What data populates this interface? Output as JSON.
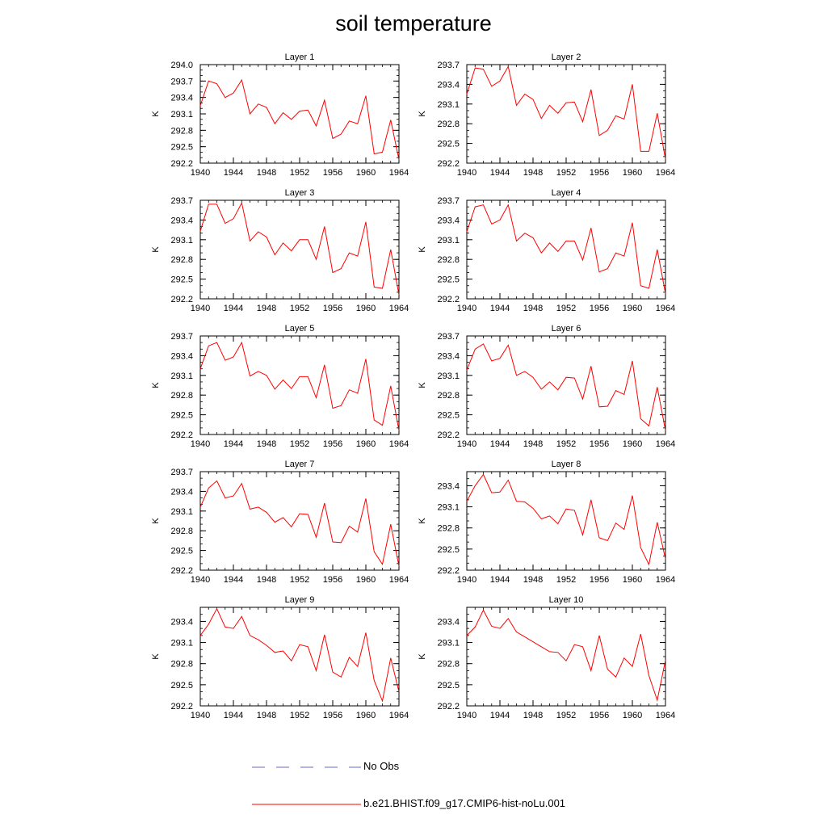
{
  "figure_title": "soil temperature",
  "legend": {
    "items": [
      {
        "label": "No Obs",
        "color": "#6a6ac8",
        "style": "dashed"
      },
      {
        "label": "b.e21.BHIST.f09_g17.CMIP6-hist-noLu.001",
        "color": "#ff0000",
        "style": "solid"
      }
    ]
  },
  "chart_data": [
    {
      "type": "line",
      "title": "Layer 1",
      "ylabel": "K",
      "xlim": [
        1940,
        1964
      ],
      "ylim": [
        292.2,
        294.0
      ],
      "xticks": [
        "1940",
        "1944",
        "1948",
        "1952",
        "1956",
        "1960",
        "1964"
      ],
      "yticks": [
        "292.2",
        "292.5",
        "292.8",
        "293.1",
        "293.4",
        "293.7",
        "294.0"
      ],
      "x": [
        1940,
        1941,
        1942,
        1943,
        1944,
        1945,
        1946,
        1947,
        1948,
        1949,
        1950,
        1951,
        1952,
        1953,
        1954,
        1955,
        1956,
        1957,
        1958,
        1959,
        1960,
        1961,
        1962,
        1963,
        1964
      ],
      "series": [
        {
          "color": "#ff0000",
          "values": [
            293.25,
            293.7,
            293.65,
            293.4,
            293.48,
            293.72,
            293.1,
            293.28,
            293.22,
            292.92,
            293.12,
            293.0,
            293.15,
            293.17,
            292.88,
            293.35,
            292.65,
            292.73,
            292.97,
            292.92,
            293.43,
            292.37,
            292.4,
            292.99,
            292.26
          ]
        }
      ]
    },
    {
      "type": "line",
      "title": "Layer 2",
      "ylabel": "K",
      "xlim": [
        1940,
        1964
      ],
      "ylim": [
        292.2,
        293.7
      ],
      "xticks": [
        "1940",
        "1944",
        "1948",
        "1952",
        "1956",
        "1960",
        "1964"
      ],
      "yticks": [
        "292.2",
        "292.5",
        "292.8",
        "293.1",
        "293.4",
        "293.7"
      ],
      "x": [
        1940,
        1941,
        1942,
        1943,
        1944,
        1945,
        1946,
        1947,
        1948,
        1949,
        1950,
        1951,
        1952,
        1953,
        1954,
        1955,
        1956,
        1957,
        1958,
        1959,
        1960,
        1961,
        1962,
        1963,
        1964
      ],
      "series": [
        {
          "color": "#ff0000",
          "values": [
            293.25,
            293.65,
            293.63,
            293.37,
            293.45,
            293.67,
            293.08,
            293.25,
            293.17,
            292.88,
            293.08,
            292.96,
            293.12,
            293.13,
            292.83,
            293.32,
            292.62,
            292.7,
            292.92,
            292.87,
            293.4,
            292.38,
            292.38,
            292.96,
            292.26
          ]
        }
      ]
    },
    {
      "type": "line",
      "title": "Layer 3",
      "ylabel": "K",
      "xlim": [
        1940,
        1964
      ],
      "ylim": [
        292.2,
        293.7
      ],
      "xticks": [
        "1940",
        "1944",
        "1948",
        "1952",
        "1956",
        "1960",
        "1964"
      ],
      "yticks": [
        "292.2",
        "292.5",
        "292.8",
        "293.1",
        "293.4",
        "293.7"
      ],
      "x": [
        1940,
        1941,
        1942,
        1943,
        1944,
        1945,
        1946,
        1947,
        1948,
        1949,
        1950,
        1951,
        1952,
        1953,
        1954,
        1955,
        1956,
        1957,
        1958,
        1959,
        1960,
        1961,
        1962,
        1963,
        1964
      ],
      "series": [
        {
          "color": "#ff0000",
          "values": [
            293.23,
            293.64,
            293.64,
            293.35,
            293.42,
            293.66,
            293.08,
            293.22,
            293.14,
            292.87,
            293.05,
            292.93,
            293.1,
            293.1,
            292.8,
            293.3,
            292.6,
            292.66,
            292.9,
            292.85,
            293.37,
            292.38,
            292.36,
            292.95,
            292.26
          ]
        }
      ]
    },
    {
      "type": "line",
      "title": "Layer 4",
      "ylabel": "K",
      "xlim": [
        1940,
        1964
      ],
      "ylim": [
        292.2,
        293.7
      ],
      "xticks": [
        "1940",
        "1944",
        "1948",
        "1952",
        "1956",
        "1960",
        "1964"
      ],
      "yticks": [
        "292.2",
        "292.5",
        "292.8",
        "293.1",
        "293.4",
        "293.7"
      ],
      "x": [
        1940,
        1941,
        1942,
        1943,
        1944,
        1945,
        1946,
        1947,
        1948,
        1949,
        1950,
        1951,
        1952,
        1953,
        1954,
        1955,
        1956,
        1957,
        1958,
        1959,
        1960,
        1961,
        1962,
        1963,
        1964
      ],
      "series": [
        {
          "color": "#ff0000",
          "values": [
            293.22,
            293.6,
            293.63,
            293.34,
            293.4,
            293.63,
            293.08,
            293.2,
            293.13,
            292.9,
            293.05,
            292.92,
            293.08,
            293.08,
            292.79,
            293.28,
            292.61,
            292.66,
            292.9,
            292.85,
            293.36,
            292.4,
            292.36,
            292.95,
            292.28
          ]
        }
      ]
    },
    {
      "type": "line",
      "title": "Layer 5",
      "ylabel": "K",
      "xlim": [
        1940,
        1964
      ],
      "ylim": [
        292.2,
        293.7
      ],
      "xticks": [
        "1940",
        "1944",
        "1948",
        "1952",
        "1956",
        "1960",
        "1964"
      ],
      "yticks": [
        "292.2",
        "292.5",
        "292.8",
        "293.1",
        "293.4",
        "293.7"
      ],
      "x": [
        1940,
        1941,
        1942,
        1943,
        1944,
        1945,
        1946,
        1947,
        1948,
        1949,
        1950,
        1951,
        1952,
        1953,
        1954,
        1955,
        1956,
        1957,
        1958,
        1959,
        1960,
        1961,
        1962,
        1963,
        1964
      ],
      "series": [
        {
          "color": "#ff0000",
          "values": [
            293.2,
            293.55,
            293.6,
            293.33,
            293.38,
            293.6,
            293.09,
            293.16,
            293.1,
            292.89,
            293.03,
            292.9,
            293.08,
            293.08,
            292.76,
            293.26,
            292.6,
            292.64,
            292.88,
            292.83,
            293.35,
            292.42,
            292.34,
            292.94,
            292.26
          ]
        }
      ]
    },
    {
      "type": "line",
      "title": "Layer 6",
      "ylabel": "K",
      "xlim": [
        1940,
        1964
      ],
      "ylim": [
        292.2,
        293.7
      ],
      "xticks": [
        "1940",
        "1944",
        "1948",
        "1952",
        "1956",
        "1960",
        "1964"
      ],
      "yticks": [
        "292.2",
        "292.5",
        "292.8",
        "293.1",
        "293.4",
        "293.7"
      ],
      "x": [
        1940,
        1941,
        1942,
        1943,
        1944,
        1945,
        1946,
        1947,
        1948,
        1949,
        1950,
        1951,
        1952,
        1953,
        1954,
        1955,
        1956,
        1957,
        1958,
        1959,
        1960,
        1961,
        1962,
        1963,
        1964
      ],
      "series": [
        {
          "color": "#ff0000",
          "values": [
            293.18,
            293.5,
            293.58,
            293.32,
            293.36,
            293.56,
            293.1,
            293.16,
            293.07,
            292.89,
            293.0,
            292.88,
            293.07,
            293.06,
            292.74,
            293.24,
            292.62,
            292.63,
            292.87,
            292.81,
            293.32,
            292.44,
            292.33,
            292.92,
            292.26
          ]
        }
      ]
    },
    {
      "type": "line",
      "title": "Layer 7",
      "ylabel": "K",
      "xlim": [
        1940,
        1964
      ],
      "ylim": [
        292.2,
        293.7
      ],
      "xticks": [
        "1940",
        "1944",
        "1948",
        "1952",
        "1956",
        "1960",
        "1964"
      ],
      "yticks": [
        "292.2",
        "292.5",
        "292.8",
        "293.1",
        "293.4",
        "293.7"
      ],
      "x": [
        1940,
        1941,
        1942,
        1943,
        1944,
        1945,
        1946,
        1947,
        1948,
        1949,
        1950,
        1951,
        1952,
        1953,
        1954,
        1955,
        1956,
        1957,
        1958,
        1959,
        1960,
        1961,
        1962,
        1963,
        1964
      ],
      "series": [
        {
          "color": "#ff0000",
          "values": [
            293.16,
            293.45,
            293.56,
            293.3,
            293.33,
            293.52,
            293.13,
            293.16,
            293.08,
            292.93,
            293.0,
            292.86,
            293.06,
            293.05,
            292.7,
            293.22,
            292.63,
            292.62,
            292.87,
            292.78,
            293.29,
            292.48,
            292.29,
            292.9,
            292.26
          ]
        }
      ]
    },
    {
      "type": "line",
      "title": "Layer 8",
      "ylabel": "K",
      "xlim": [
        1940,
        1964
      ],
      "ylim": [
        292.2,
        293.6
      ],
      "xticks": [
        "1940",
        "1944",
        "1948",
        "1952",
        "1956",
        "1960",
        "1964"
      ],
      "yticks": [
        "292.2",
        "292.5",
        "292.8",
        "293.1",
        "293.4"
      ],
      "x": [
        1940,
        1941,
        1942,
        1943,
        1944,
        1945,
        1946,
        1947,
        1948,
        1949,
        1950,
        1951,
        1952,
        1953,
        1954,
        1955,
        1956,
        1957,
        1958,
        1959,
        1960,
        1961,
        1962,
        1963,
        1964
      ],
      "series": [
        {
          "color": "#ff0000",
          "values": [
            293.18,
            293.4,
            293.56,
            293.3,
            293.31,
            293.48,
            293.18,
            293.17,
            293.08,
            292.93,
            292.97,
            292.86,
            293.07,
            293.05,
            292.7,
            293.2,
            292.66,
            292.62,
            292.87,
            292.78,
            293.26,
            292.52,
            292.28,
            292.88,
            292.36
          ]
        }
      ]
    },
    {
      "type": "line",
      "title": "Layer 9",
      "ylabel": "K",
      "xlim": [
        1940,
        1964
      ],
      "ylim": [
        292.2,
        293.6
      ],
      "xticks": [
        "1940",
        "1944",
        "1948",
        "1952",
        "1956",
        "1960",
        "1964"
      ],
      "yticks": [
        "292.2",
        "292.5",
        "292.8",
        "293.1",
        "293.4"
      ],
      "x": [
        1940,
        1941,
        1942,
        1943,
        1944,
        1945,
        1946,
        1947,
        1948,
        1949,
        1950,
        1951,
        1952,
        1953,
        1954,
        1955,
        1956,
        1957,
        1958,
        1959,
        1960,
        1961,
        1962,
        1963,
        1964
      ],
      "series": [
        {
          "color": "#ff0000",
          "values": [
            293.2,
            293.36,
            293.58,
            293.32,
            293.3,
            293.47,
            293.2,
            293.14,
            293.06,
            292.96,
            292.98,
            292.84,
            293.07,
            293.04,
            292.7,
            293.21,
            292.68,
            292.61,
            292.89,
            292.76,
            293.24,
            292.56,
            292.27,
            292.88,
            292.4
          ]
        }
      ]
    },
    {
      "type": "line",
      "title": "Layer 10",
      "ylabel": "K",
      "xlim": [
        1940,
        1964
      ],
      "ylim": [
        292.2,
        293.6
      ],
      "xticks": [
        "1940",
        "1944",
        "1948",
        "1952",
        "1956",
        "1960",
        "1964"
      ],
      "yticks": [
        "292.2",
        "292.5",
        "292.8",
        "293.1",
        "293.4"
      ],
      "x": [
        1940,
        1941,
        1942,
        1943,
        1944,
        1945,
        1946,
        1947,
        1948,
        1949,
        1950,
        1951,
        1952,
        1953,
        1954,
        1955,
        1956,
        1957,
        1958,
        1959,
        1960,
        1961,
        1962,
        1963,
        1964
      ],
      "series": [
        {
          "color": "#ff0000",
          "values": [
            293.2,
            293.32,
            293.56,
            293.33,
            293.3,
            293.44,
            293.25,
            293.18,
            293.11,
            293.04,
            292.97,
            292.96,
            292.84,
            293.07,
            293.04,
            292.7,
            293.2,
            292.72,
            292.61,
            292.88,
            292.76,
            293.22,
            292.63,
            292.28,
            292.85
          ]
        }
      ]
    }
  ]
}
